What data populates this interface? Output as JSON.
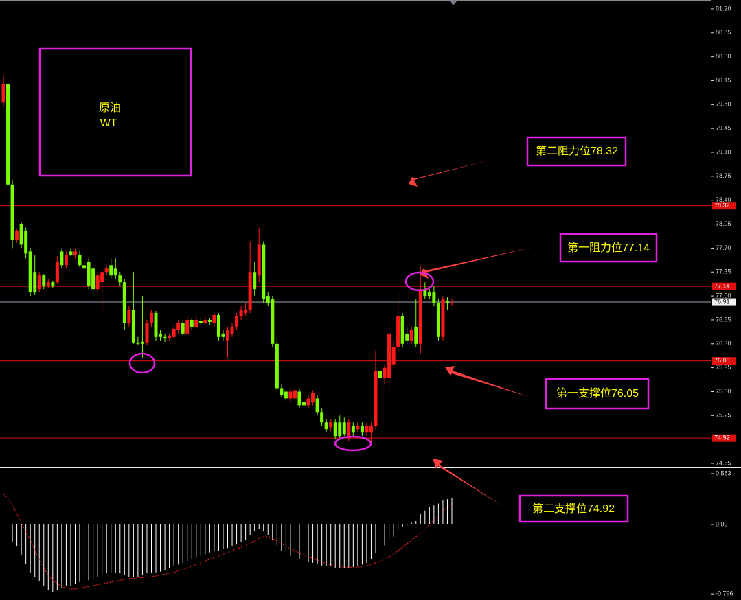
{
  "chart_data": [
    {
      "type": "candlestick",
      "annotations": {
        "title_box": [
          "原油",
          "WT"
        ],
        "level_notes": [
          "第二阻力位78.32",
          "第一阻力位77.14",
          "第一支撑位76.05",
          "第二支撑位74.92"
        ]
      },
      "ylim": [
        74.5,
        81.33
      ],
      "yticks": [
        {
          "value": 81.2,
          "label": "81.20"
        },
        80.85,
        {
          "value": 80.5,
          "label": "80.50"
        },
        80.15,
        {
          "value": 79.8,
          "label": "79.80"
        },
        79.45,
        {
          "value": 79.1,
          "label": "79.10"
        },
        78.75,
        {
          "value": 78.4,
          "label": "78.40"
        },
        78.05,
        {
          "value": 77.7,
          "label": "77.70"
        },
        77.35,
        {
          "value": 77,
          "label": "77.00"
        },
        76.65,
        {
          "value": 76.3,
          "label": "76.30"
        },
        75.95,
        {
          "value": 75.6,
          "label": "75.60"
        },
        75.25,
        74.55
      ],
      "levels": [
        78.32,
        77.14,
        76.05,
        74.92
      ],
      "last_price": 76.91,
      "up_color": "#ff1a1a",
      "down_color": "#7cfc00",
      "level_color": "#e01010",
      "ohlc": [
        [
          79.83,
          80.23,
          79.78,
          80.1
        ],
        [
          80.1,
          80.12,
          78.6,
          78.63
        ],
        [
          78.63,
          78.7,
          77.7,
          77.82
        ],
        [
          77.82,
          77.98,
          77.78,
          77.95
        ],
        [
          78.05,
          78.08,
          77.7,
          77.75
        ],
        [
          77.95,
          78.0,
          77.55,
          77.62
        ],
        [
          77.65,
          77.7,
          77.0,
          77.06
        ],
        [
          77.35,
          77.6,
          77.02,
          77.05
        ],
        [
          77.1,
          77.35,
          77.05,
          77.3
        ],
        [
          77.3,
          77.32,
          77.1,
          77.15
        ],
        [
          77.15,
          77.25,
          77.12,
          77.2
        ],
        [
          77.2,
          77.22,
          77.12,
          77.15
        ],
        [
          77.2,
          77.58,
          77.18,
          77.5
        ],
        [
          77.65,
          77.7,
          77.4,
          77.45
        ],
        [
          77.45,
          77.65,
          77.4,
          77.6
        ],
        [
          77.65,
          77.7,
          77.58,
          77.6
        ],
        [
          77.6,
          77.7,
          77.55,
          77.65
        ],
        [
          77.6,
          77.66,
          77.42,
          77.45
        ],
        [
          77.45,
          77.5,
          77.35,
          77.4
        ],
        [
          77.5,
          77.55,
          77.1,
          77.15
        ],
        [
          77.4,
          77.45,
          77.0,
          77.1
        ],
        [
          77.1,
          77.35,
          77.05,
          77.3
        ],
        [
          77.2,
          77.4,
          76.8,
          77.35
        ],
        [
          77.35,
          77.45,
          77.3,
          77.4
        ],
        [
          77.45,
          77.55,
          77.25,
          77.3
        ],
        [
          77.4,
          77.55,
          77.25,
          77.3
        ],
        [
          77.3,
          77.35,
          77.15,
          77.2
        ],
        [
          77.2,
          77.25,
          76.5,
          76.6
        ],
        [
          76.6,
          76.85,
          76.55,
          76.8
        ],
        [
          76.8,
          77.35,
          76.3,
          76.32
        ],
        [
          76.32,
          76.4,
          76.28,
          76.3
        ],
        [
          76.33,
          77.0,
          76.1,
          76.3
        ],
        [
          76.32,
          76.65,
          76.28,
          76.6
        ],
        [
          76.6,
          76.8,
          76.55,
          76.75
        ],
        [
          76.75,
          76.78,
          76.35,
          76.4
        ],
        [
          76.45,
          76.5,
          76.35,
          76.4
        ],
        [
          76.4,
          76.45,
          76.33,
          76.38
        ],
        [
          76.38,
          76.45,
          76.35,
          76.42
        ],
        [
          76.4,
          76.58,
          76.38,
          76.52
        ],
        [
          76.5,
          76.65,
          76.45,
          76.6
        ],
        [
          76.6,
          76.65,
          76.42,
          76.45
        ],
        [
          76.45,
          76.7,
          76.42,
          76.65
        ],
        [
          76.65,
          76.68,
          76.5,
          76.55
        ],
        [
          76.55,
          76.7,
          76.52,
          76.65
        ],
        [
          76.63,
          76.68,
          76.58,
          76.6
        ],
        [
          76.6,
          76.7,
          76.58,
          76.65
        ],
        [
          76.65,
          76.68,
          76.58,
          76.62
        ],
        [
          76.6,
          76.75,
          76.55,
          76.72
        ],
        [
          76.72,
          76.75,
          76.35,
          76.4
        ],
        [
          76.45,
          76.5,
          76.35,
          76.4
        ],
        [
          76.35,
          76.55,
          76.1,
          76.5
        ],
        [
          76.45,
          76.6,
          76.4,
          76.55
        ],
        [
          76.55,
          76.75,
          76.5,
          76.7
        ],
        [
          76.7,
          76.85,
          76.65,
          76.8
        ],
        [
          76.75,
          76.9,
          76.7,
          76.8
        ],
        [
          76.8,
          77.8,
          76.75,
          77.35
        ],
        [
          77.35,
          77.5,
          77.0,
          77.1
        ],
        [
          77.3,
          78.0,
          77.2,
          77.75
        ],
        [
          77.75,
          77.8,
          76.9,
          76.95
        ],
        [
          77.0,
          77.05,
          76.85,
          76.9
        ],
        [
          76.95,
          77.0,
          76.25,
          76.3
        ],
        [
          76.3,
          76.4,
          75.6,
          75.65
        ],
        [
          75.65,
          75.7,
          75.52,
          75.55
        ],
        [
          75.6,
          75.65,
          75.45,
          75.5
        ],
        [
          75.5,
          75.65,
          75.45,
          75.6
        ],
        [
          75.5,
          75.65,
          75.45,
          75.62
        ],
        [
          75.6,
          75.65,
          75.35,
          75.4
        ],
        [
          75.45,
          75.5,
          75.35,
          75.4
        ],
        [
          75.4,
          75.55,
          75.35,
          75.5
        ],
        [
          75.45,
          75.62,
          75.4,
          75.58
        ],
        [
          75.5,
          75.55,
          75.25,
          75.3
        ],
        [
          75.3,
          75.35,
          75.1,
          75.15
        ],
        [
          75.15,
          75.2,
          75.0,
          75.05
        ],
        [
          75.08,
          75.2,
          75.02,
          75.15
        ],
        [
          75.15,
          75.2,
          74.9,
          74.95
        ],
        [
          75.15,
          75.25,
          74.9,
          74.95
        ],
        [
          75.15,
          75.22,
          74.95,
          74.98
        ],
        [
          74.95,
          75.2,
          74.88,
          75.15
        ],
        [
          75.1,
          75.15,
          74.95,
          75.0
        ],
        [
          75.05,
          75.15,
          75.0,
          75.1
        ],
        [
          75.1,
          75.15,
          74.95,
          75.0
        ],
        [
          75.0,
          75.15,
          74.95,
          75.1
        ],
        [
          75.0,
          75.15,
          74.85,
          75.1
        ],
        [
          75.1,
          76.2,
          75.05,
          75.9
        ],
        [
          75.9,
          76.0,
          75.75,
          75.8
        ],
        [
          75.8,
          76.0,
          75.7,
          75.95
        ],
        [
          75.8,
          76.75,
          75.6,
          76.45
        ],
        [
          76.0,
          76.35,
          75.95,
          76.25
        ],
        [
          76.25,
          77.05,
          76.2,
          76.7
        ],
        [
          76.7,
          76.75,
          76.25,
          76.3
        ],
        [
          76.45,
          76.55,
          76.3,
          76.35
        ],
        [
          76.35,
          76.55,
          76.3,
          76.5
        ],
        [
          76.55,
          76.95,
          76.25,
          76.3
        ],
        [
          76.3,
          77.43,
          76.15,
          77.1
        ],
        [
          77.1,
          77.2,
          76.95,
          77.0
        ],
        [
          77.05,
          77.1,
          76.95,
          77.0
        ],
        [
          77.05,
          77.15,
          76.85,
          76.9
        ],
        [
          76.9,
          76.95,
          76.35,
          76.4
        ],
        [
          76.4,
          77.0,
          76.35,
          76.95
        ],
        [
          76.92,
          76.98,
          76.8,
          76.9
        ],
        [
          76.9,
          76.95,
          76.85,
          76.91
        ]
      ]
    },
    {
      "type": "macd",
      "ylim": [
        -0.866,
        0.622
      ],
      "yticks": [
        0.583,
        {
          "value": 0,
          "label": "0.00"
        },
        -0.796
      ],
      "histogram_color": "#ffffff",
      "signal_color": "#ff2020",
      "histogram": [
        null,
        null,
        -0.2,
        -0.25,
        -0.35,
        -0.45,
        -0.55,
        -0.6,
        -0.65,
        -0.7,
        -0.75,
        -0.78,
        -0.75,
        -0.73,
        -0.7,
        -0.7,
        -0.68,
        -0.66,
        -0.66,
        -0.64,
        -0.62,
        -0.6,
        -0.58,
        -0.56,
        -0.55,
        -0.55,
        -0.56,
        -0.58,
        -0.6,
        -0.6,
        -0.6,
        -0.58,
        -0.56,
        -0.55,
        -0.55,
        -0.54,
        -0.52,
        -0.5,
        -0.48,
        -0.46,
        -0.44,
        -0.42,
        -0.4,
        -0.38,
        -0.36,
        -0.34,
        -0.32,
        -0.3,
        -0.3,
        -0.28,
        -0.27,
        -0.25,
        -0.23,
        -0.2,
        -0.18,
        -0.12,
        -0.08,
        -0.05,
        -0.08,
        -0.12,
        -0.18,
        -0.25,
        -0.3,
        -0.33,
        -0.36,
        -0.38,
        -0.4,
        -0.42,
        -0.43,
        -0.44,
        -0.45,
        -0.47,
        -0.48,
        -0.48,
        -0.5,
        -0.5,
        -0.5,
        -0.5,
        -0.49,
        -0.48,
        -0.46,
        -0.44,
        -0.4,
        -0.33,
        -0.28,
        -0.24,
        -0.18,
        -0.14,
        -0.06,
        -0.03,
        -0.01,
        0.02,
        0.04,
        0.12,
        0.16,
        0.2,
        0.22,
        0.24,
        0.28,
        0.29,
        0.3
      ],
      "signal": [
        0.35,
        0.3,
        0.22,
        0.12,
        0.02,
        -0.08,
        -0.18,
        -0.3,
        -0.4,
        -0.5,
        -0.58,
        -0.64,
        -0.68,
        -0.71,
        -0.73,
        -0.74,
        -0.74,
        -0.73,
        -0.72,
        -0.71,
        -0.7,
        -0.69,
        -0.68,
        -0.67,
        -0.66,
        -0.65,
        -0.64,
        -0.63,
        -0.62,
        -0.62,
        -0.61,
        -0.61,
        -0.6,
        -0.6,
        -0.59,
        -0.58,
        -0.57,
        -0.56,
        -0.55,
        -0.53,
        -0.52,
        -0.5,
        -0.48,
        -0.46,
        -0.44,
        -0.42,
        -0.4,
        -0.38,
        -0.36,
        -0.34,
        -0.32,
        -0.3,
        -0.28,
        -0.26,
        -0.24,
        -0.22,
        -0.19,
        -0.16,
        -0.14,
        -0.14,
        -0.16,
        -0.19,
        -0.22,
        -0.25,
        -0.28,
        -0.3,
        -0.33,
        -0.35,
        -0.37,
        -0.39,
        -0.41,
        -0.43,
        -0.45,
        -0.46,
        -0.47,
        -0.48,
        -0.49,
        -0.49,
        -0.49,
        -0.49,
        -0.48,
        -0.47,
        -0.46,
        -0.44,
        -0.42,
        -0.4,
        -0.37,
        -0.34,
        -0.3,
        -0.26,
        -0.22,
        -0.18,
        -0.14,
        -0.1,
        -0.05,
        0,
        0.05,
        0.1,
        0.15,
        0.2,
        0.24
      ]
    }
  ]
}
